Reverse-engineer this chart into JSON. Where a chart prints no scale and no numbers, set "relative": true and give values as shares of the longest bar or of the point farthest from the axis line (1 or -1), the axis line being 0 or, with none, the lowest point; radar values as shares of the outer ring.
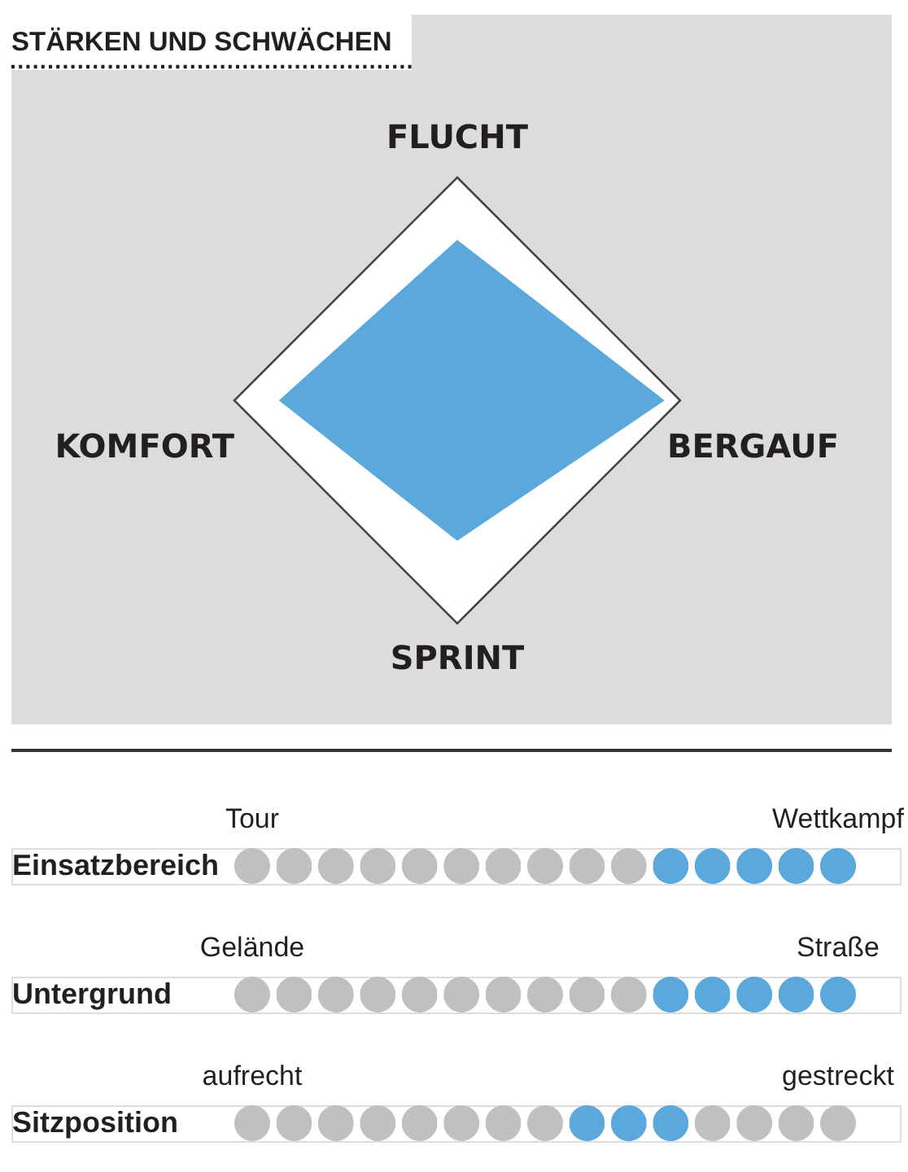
{
  "chart_data": [
    {
      "type": "radar",
      "title": "STÄRKEN UND SCHWÄCHEN",
      "categories": [
        "FLUCHT",
        "BERGAUF",
        "SPRINT",
        "KOMFORT"
      ],
      "relative": true,
      "series": [
        {
          "color": "#5aa8dc",
          "values": [
            0.72,
            0.93,
            0.63,
            0.8
          ]
        }
      ]
    },
    {
      "type": "bar",
      "relative": true,
      "ylabel": "Einsatzbereich",
      "categories": [
        "Tour",
        null,
        null,
        null,
        null,
        null,
        null,
        null,
        null,
        null,
        null,
        null,
        null,
        null,
        "Wettkampf"
      ],
      "values": [
        1,
        1,
        1,
        1,
        1,
        1,
        1,
        1,
        1,
        1,
        1,
        1,
        1,
        1,
        1
      ],
      "colors": [
        "#c0c0c2",
        "#c0c0c2",
        "#c0c0c2",
        "#c0c0c2",
        "#c0c0c2",
        "#c0c0c2",
        "#c0c0c2",
        "#c0c0c2",
        "#c0c0c2",
        "#c0c0c2",
        "#5aa8dc",
        "#5aa8dc",
        "#5aa8dc",
        "#5aa8dc",
        "#5aa8dc"
      ]
    },
    {
      "type": "bar",
      "relative": true,
      "ylabel": "Untergrund",
      "categories": [
        "Gelände",
        null,
        null,
        null,
        null,
        null,
        null,
        null,
        null,
        null,
        null,
        null,
        null,
        null,
        "Straße"
      ],
      "values": [
        1,
        1,
        1,
        1,
        1,
        1,
        1,
        1,
        1,
        1,
        1,
        1,
        1,
        1,
        1
      ],
      "colors": [
        "#c0c0c2",
        "#c0c0c2",
        "#c0c0c2",
        "#c0c0c2",
        "#c0c0c2",
        "#c0c0c2",
        "#c0c0c2",
        "#c0c0c2",
        "#c0c0c2",
        "#c0c0c2",
        "#5aa8dc",
        "#5aa8dc",
        "#5aa8dc",
        "#5aa8dc",
        "#5aa8dc"
      ]
    },
    {
      "type": "bar",
      "relative": true,
      "ylabel": "Sitzposition",
      "categories": [
        "aufrecht",
        null,
        null,
        null,
        null,
        null,
        null,
        null,
        null,
        null,
        null,
        null,
        null,
        null,
        "gestreckt"
      ],
      "values": [
        1,
        1,
        1,
        1,
        1,
        1,
        1,
        1,
        1,
        1,
        1,
        1,
        1,
        1,
        1
      ],
      "colors": [
        "#c0c0c2",
        "#c0c0c2",
        "#c0c0c2",
        "#c0c0c2",
        "#c0c0c2",
        "#c0c0c2",
        "#c0c0c2",
        "#c0c0c2",
        "#5aa8dc",
        "#5aa8dc",
        "#5aa8dc",
        "#c0c0c2",
        "#c0c0c2",
        "#c0c0c2",
        "#c0c0c2"
      ]
    }
  ]
}
